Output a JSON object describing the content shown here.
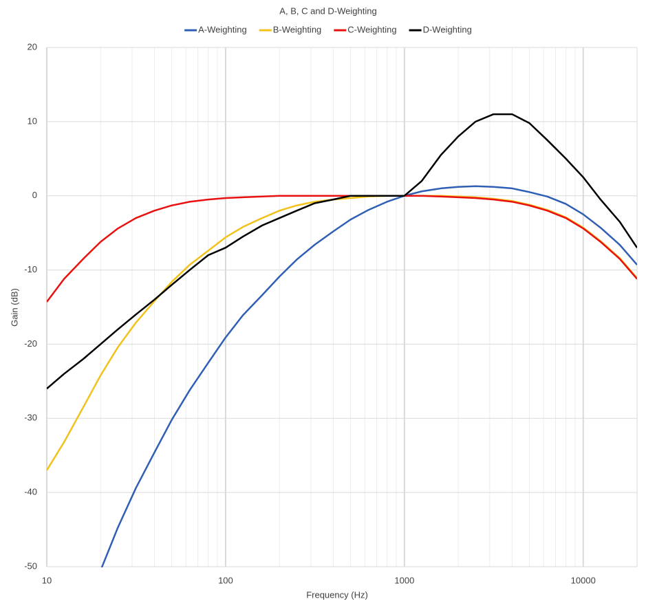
{
  "chart_data": {
    "type": "line",
    "title": "A, B, C and D-Weighting",
    "x_label": "Frequency (Hz)",
    "y_label": "Gain (dB)",
    "log_x": true,
    "grid": true,
    "minor_grid": true,
    "legend": "top",
    "xlim": [
      10,
      20000
    ],
    "xticks": [
      10,
      100,
      1000,
      10000
    ],
    "ylim": [
      -50,
      20
    ],
    "yticks": [
      -50,
      -40,
      -30,
      -20,
      -10,
      0,
      10,
      20
    ],
    "x": [
      10,
      12.5,
      16,
      20,
      25,
      31.5,
      40,
      50,
      63,
      80,
      100,
      125,
      160,
      200,
      250,
      315,
      400,
      500,
      630,
      800,
      1000,
      1250,
      1600,
      2000,
      2500,
      3150,
      4000,
      5000,
      6300,
      8000,
      10000,
      12500,
      16000,
      20000
    ],
    "series": [
      {
        "name": "A-Weighting",
        "color": "#2e5fb5",
        "values": [
          null,
          null,
          null,
          -50.5,
          -44.7,
          -39.4,
          -34.6,
          -30.2,
          -26.2,
          -22.5,
          -19.1,
          -16.1,
          -13.4,
          -10.9,
          -8.6,
          -6.6,
          -4.8,
          -3.2,
          -1.9,
          -0.8,
          0,
          0.6,
          1.0,
          1.2,
          1.3,
          1.2,
          1.0,
          0.5,
          -0.1,
          -1.1,
          -2.5,
          -4.3,
          -6.6,
          -9.3
        ]
      },
      {
        "name": "B-Weighting",
        "color": "#f2c11a",
        "values": [
          -37,
          -33.2,
          -28.5,
          -24.2,
          -20.4,
          -17.1,
          -14.2,
          -11.6,
          -9.3,
          -7.4,
          -5.6,
          -4.2,
          -3.0,
          -2.0,
          -1.3,
          -0.8,
          -0.5,
          -0.3,
          -0.1,
          0,
          0,
          0,
          0,
          -0.1,
          -0.2,
          -0.4,
          -0.7,
          -1.2,
          -1.9,
          -2.9,
          -4.3,
          -6.1,
          -8.4,
          -11.1
        ]
      },
      {
        "name": "C-Weighting",
        "color": "#e8110f",
        "values": [
          -14.3,
          -11.2,
          -8.5,
          -6.2,
          -4.4,
          -3.0,
          -2.0,
          -1.3,
          -0.8,
          -0.5,
          -0.3,
          -0.2,
          -0.1,
          0,
          0,
          0,
          0,
          0,
          0,
          0,
          0,
          0,
          -0.1,
          -0.2,
          -0.3,
          -0.5,
          -0.8,
          -1.3,
          -2.0,
          -3.0,
          -4.4,
          -6.2,
          -8.5,
          -11.2
        ]
      },
      {
        "name": "D-Weighting",
        "color": "#000000",
        "values": [
          -26,
          -24,
          -22,
          -20,
          -18,
          -16,
          -14,
          -12,
          -10,
          -8,
          -7,
          -5.5,
          -4,
          -3,
          -2,
          -1,
          -0.5,
          0,
          0,
          0,
          0,
          2,
          5.5,
          8,
          10,
          11,
          11,
          9.8,
          7.5,
          5,
          2.5,
          -0.5,
          -3.5,
          -7
        ]
      }
    ]
  }
}
